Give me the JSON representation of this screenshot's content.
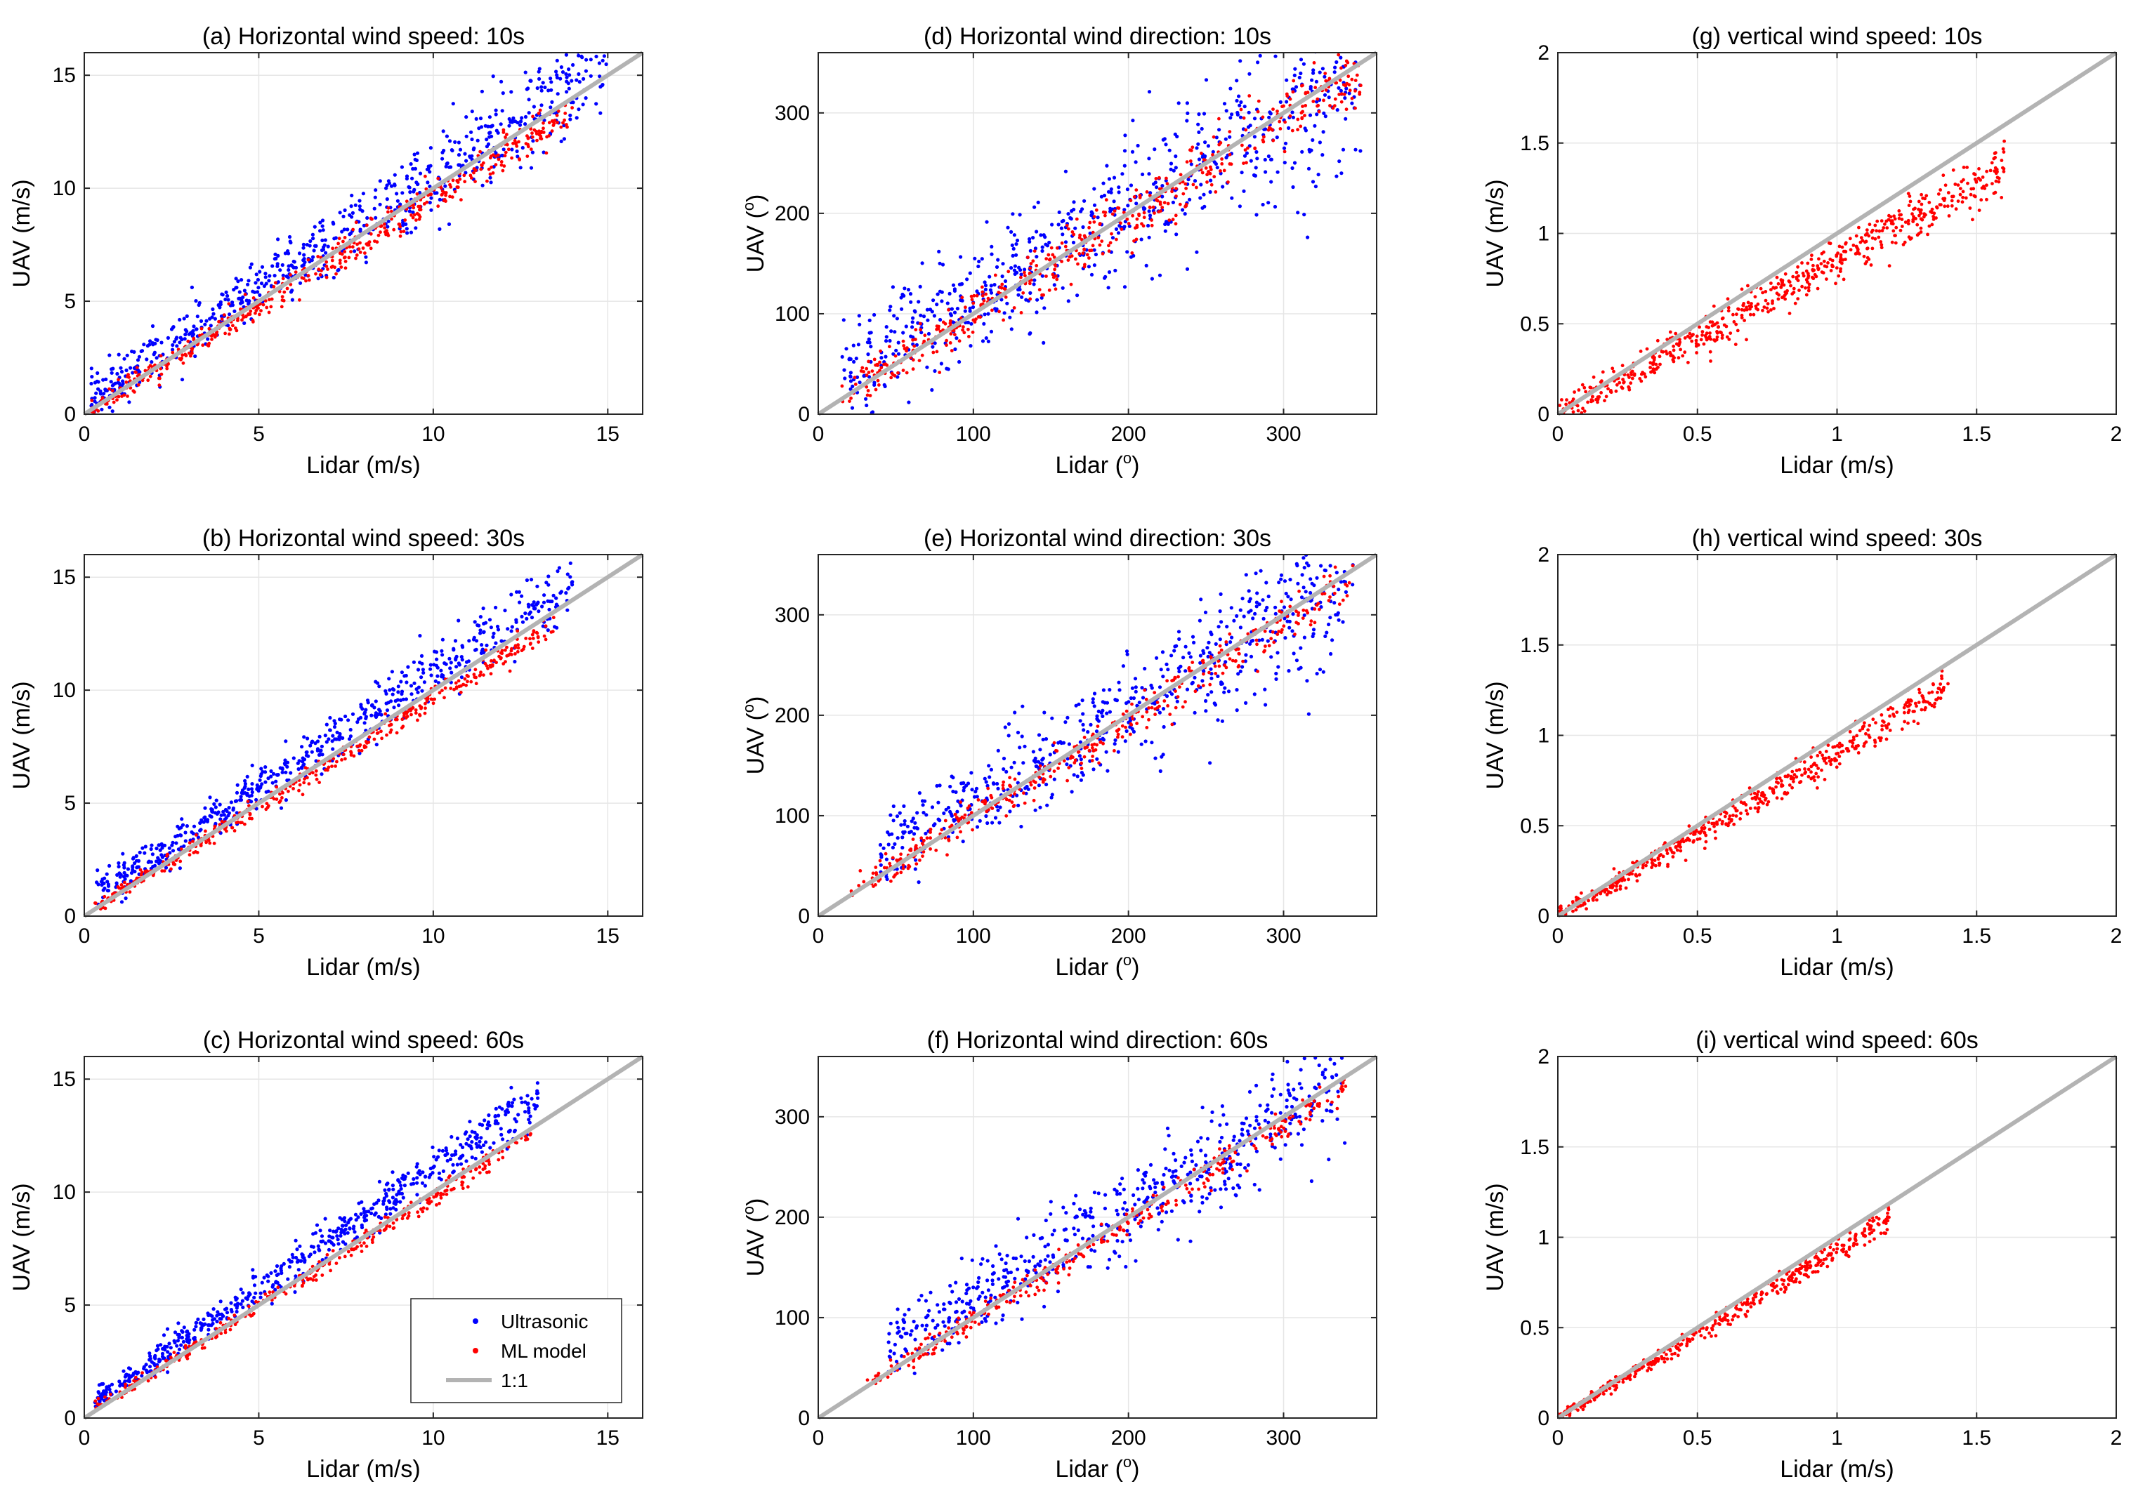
{
  "colors": {
    "ultrasonic": "#0000ff",
    "ml": "#ff0000",
    "one_to_one": "#b3b3b3",
    "grid": "#e6e6e6",
    "axis": "#262626"
  },
  "legend": {
    "items": [
      {
        "label": "Ultrasonic",
        "color": "#0000ff",
        "kind": "marker"
      },
      {
        "label": "ML model",
        "color": "#ff0000",
        "kind": "marker"
      },
      {
        "label": "1:1",
        "color": "#b3b3b3",
        "kind": "line"
      }
    ],
    "location": "bottom-right of panel (c)"
  },
  "chart_data": [
    {
      "id": "a",
      "type": "scatter",
      "title": "(a) Horizontal wind speed: 10s",
      "xlabel": "Lidar (m/s)",
      "ylabel": "UAV (m/s)",
      "xlim": [
        0,
        16
      ],
      "ylim": [
        0,
        16
      ],
      "xticks": [
        0,
        5,
        10,
        15
      ],
      "yticks": [
        0,
        5,
        10,
        15
      ],
      "grid": true,
      "series": [
        {
          "name": "Ultrasonic",
          "color": "#0000ff",
          "x_range": [
            0.2,
            15.0
          ],
          "slope": 1.0,
          "intercept": 0.6,
          "spread": 1.1,
          "n": 700
        },
        {
          "name": "ML model",
          "color": "#ff0000",
          "x_range": [
            0.2,
            14.0
          ],
          "slope": 0.96,
          "intercept": 0.0,
          "spread": 0.45,
          "n": 500
        }
      ],
      "one_to_one": true
    },
    {
      "id": "b",
      "type": "scatter",
      "title": "(b) Horizontal wind speed: 30s",
      "xlabel": "Lidar (m/s)",
      "ylabel": "UAV (m/s)",
      "xlim": [
        0,
        16
      ],
      "ylim": [
        0,
        16
      ],
      "xticks": [
        0,
        5,
        10,
        15
      ],
      "yticks": [
        0,
        5,
        10,
        15
      ],
      "grid": true,
      "series": [
        {
          "name": "Ultrasonic",
          "color": "#0000ff",
          "x_range": [
            0.3,
            14.0
          ],
          "slope": 1.0,
          "intercept": 0.7,
          "spread": 0.8,
          "n": 600
        },
        {
          "name": "ML model",
          "color": "#ff0000",
          "x_range": [
            0.3,
            13.5
          ],
          "slope": 0.95,
          "intercept": 0.1,
          "spread": 0.3,
          "n": 400
        }
      ],
      "one_to_one": true
    },
    {
      "id": "c",
      "type": "scatter",
      "title": "(c) Horizontal wind speed: 60s",
      "xlabel": "Lidar (m/s)",
      "ylabel": "UAV (m/s)",
      "xlim": [
        0,
        16
      ],
      "ylim": [
        0,
        16
      ],
      "xticks": [
        0,
        5,
        10,
        15
      ],
      "yticks": [
        0,
        5,
        10,
        15
      ],
      "grid": true,
      "series": [
        {
          "name": "Ultrasonic",
          "color": "#0000ff",
          "x_range": [
            0.3,
            13.0
          ],
          "slope": 1.05,
          "intercept": 0.5,
          "spread": 0.55,
          "n": 600
        },
        {
          "name": "ML model",
          "color": "#ff0000",
          "x_range": [
            0.3,
            12.8
          ],
          "slope": 0.97,
          "intercept": 0.1,
          "spread": 0.25,
          "n": 350
        }
      ],
      "one_to_one": true,
      "legend": true
    },
    {
      "id": "d",
      "type": "scatter",
      "title": "(d) Horizontal wind direction: 10s",
      "xlabel": "Lidar (",
      "xlabel_sup": "o",
      "xlabel_end": ")",
      "ylabel": "UAV (",
      "ylabel_sup": "o",
      "ylabel_end": ")",
      "xlim": [
        0,
        360
      ],
      "ylim": [
        0,
        360
      ],
      "xticks": [
        0,
        100,
        200,
        300
      ],
      "yticks": [
        0,
        100,
        200,
        300
      ],
      "grid": true,
      "series": [
        {
          "name": "Ultrasonic",
          "color": "#0000ff",
          "x_range": [
            15,
            350
          ],
          "slope": 0.9,
          "intercept": 25,
          "spread": 45,
          "n": 700
        },
        {
          "name": "ML model",
          "color": "#ff0000",
          "x_range": [
            15,
            350
          ],
          "slope": 0.95,
          "intercept": 5,
          "spread": 18,
          "n": 500
        }
      ],
      "one_to_one": true
    },
    {
      "id": "e",
      "type": "scatter",
      "title": "(e) Horizontal wind direction: 30s",
      "xlabel": "Lidar (",
      "xlabel_sup": "o",
      "xlabel_end": ")",
      "ylabel": "UAV (",
      "ylabel_sup": "o",
      "ylabel_end": ")",
      "xlim": [
        0,
        360
      ],
      "ylim": [
        0,
        360
      ],
      "xticks": [
        0,
        100,
        200,
        300
      ],
      "yticks": [
        0,
        100,
        200,
        300
      ],
      "grid": true,
      "series": [
        {
          "name": "Ultrasonic",
          "color": "#0000ff",
          "x_range": [
            40,
            345
          ],
          "slope": 0.9,
          "intercept": 25,
          "spread": 35,
          "n": 600
        },
        {
          "name": "ML model",
          "color": "#ff0000",
          "x_range": [
            20,
            345
          ],
          "slope": 0.96,
          "intercept": 3,
          "spread": 12,
          "n": 400
        }
      ],
      "one_to_one": true
    },
    {
      "id": "f",
      "type": "scatter",
      "title": "(f) Horizontal wind direction: 60s",
      "xlabel": "Lidar (",
      "xlabel_sup": "o",
      "xlabel_end": ")",
      "ylabel": "UAV (",
      "ylabel_sup": "o",
      "ylabel_end": ")",
      "xlim": [
        0,
        360
      ],
      "ylim": [
        0,
        360
      ],
      "xticks": [
        0,
        100,
        200,
        300
      ],
      "yticks": [
        0,
        100,
        200,
        300
      ],
      "grid": true,
      "series": [
        {
          "name": "Ultrasonic",
          "color": "#0000ff",
          "x_range": [
            45,
            340
          ],
          "slope": 0.9,
          "intercept": 30,
          "spread": 28,
          "n": 550
        },
        {
          "name": "ML model",
          "color": "#ff0000",
          "x_range": [
            30,
            340
          ],
          "slope": 0.96,
          "intercept": 3,
          "spread": 8,
          "n": 350
        }
      ],
      "one_to_one": true
    },
    {
      "id": "g",
      "type": "scatter",
      "title": "(g) vertical wind speed: 10s",
      "xlabel": "Lidar (m/s)",
      "ylabel": "UAV (m/s)",
      "xlim": [
        0,
        2
      ],
      "ylim": [
        0,
        2
      ],
      "xticks": [
        0,
        0.5,
        1,
        1.5,
        2
      ],
      "yticks": [
        0,
        0.5,
        1,
        1.5,
        2
      ],
      "grid": true,
      "series": [
        {
          "name": "ML model",
          "color": "#ff0000",
          "x_range": [
            0.0,
            1.6
          ],
          "slope": 0.85,
          "intercept": 0.0,
          "spread": 0.08,
          "n": 600
        }
      ],
      "one_to_one": true
    },
    {
      "id": "h",
      "type": "scatter",
      "title": "(h) vertical wind speed: 30s",
      "xlabel": "Lidar (m/s)",
      "ylabel": "UAV (m/s)",
      "xlim": [
        0,
        2
      ],
      "ylim": [
        0,
        2
      ],
      "xticks": [
        0,
        0.5,
        1,
        1.5,
        2
      ],
      "yticks": [
        0,
        0.5,
        1,
        1.5,
        2
      ],
      "grid": true,
      "series": [
        {
          "name": "ML model",
          "color": "#ff0000",
          "x_range": [
            0.0,
            1.4
          ],
          "slope": 0.9,
          "intercept": 0.0,
          "spread": 0.05,
          "n": 500
        }
      ],
      "one_to_one": true
    },
    {
      "id": "i",
      "type": "scatter",
      "title": "(i) vertical wind speed: 60s",
      "xlabel": "Lidar (m/s)",
      "ylabel": "UAV (m/s)",
      "xlim": [
        0,
        2
      ],
      "ylim": [
        0,
        2
      ],
      "xticks": [
        0,
        0.5,
        1,
        1.5,
        2
      ],
      "yticks": [
        0,
        0.5,
        1,
        1.5,
        2
      ],
      "grid": true,
      "series": [
        {
          "name": "ML model",
          "color": "#ff0000",
          "x_range": [
            0.0,
            1.2
          ],
          "slope": 0.93,
          "intercept": 0.0,
          "spread": 0.035,
          "n": 450
        }
      ],
      "one_to_one": true
    }
  ]
}
